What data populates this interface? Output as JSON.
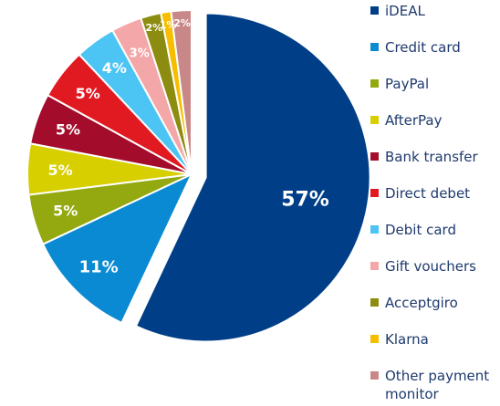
{
  "chart_data": {
    "type": "pie",
    "title": "",
    "legend_position": "right",
    "exploded_slice": "iDEAL",
    "slices": [
      {
        "name": "iDEAL",
        "value": 57,
        "label": "57%",
        "color": "#003f87"
      },
      {
        "name": "Credit card",
        "value": 11,
        "label": "11%",
        "color": "#0a8ad2"
      },
      {
        "name": "PayPal",
        "value": 5,
        "label": "5%",
        "color": "#93a90f"
      },
      {
        "name": "AfterPay",
        "value": 5,
        "label": "5%",
        "color": "#d7cf00"
      },
      {
        "name": "Bank transfer",
        "value": 5,
        "label": "5%",
        "color": "#a30d2b"
      },
      {
        "name": "Direct debet",
        "value": 5,
        "label": "5%",
        "color": "#e11a22"
      },
      {
        "name": "Debit card",
        "value": 4,
        "label": "4%",
        "color": "#4cc4f4"
      },
      {
        "name": "Gift vouchers",
        "value": 3,
        "label": "3%",
        "color": "#f4a7a8"
      },
      {
        "name": "Acceptgiro",
        "value": 2,
        "label": "2%",
        "color": "#8c8c10"
      },
      {
        "name": "Klarna",
        "value": 1,
        "label": "1%",
        "color": "#f7be00"
      },
      {
        "name": "Other payment monitor",
        "value": 2,
        "label": "2%",
        "color": "#c98888"
      }
    ],
    "legend": [
      {
        "line1": "iDEAL",
        "line2": ""
      },
      {
        "line1": "Credit card",
        "line2": ""
      },
      {
        "line1": "PayPal",
        "line2": ""
      },
      {
        "line1": "AfterPay",
        "line2": ""
      },
      {
        "line1": "Bank transfer",
        "line2": ""
      },
      {
        "line1": "Direct debet",
        "line2": ""
      },
      {
        "line1": "Debit card",
        "line2": ""
      },
      {
        "line1": "Gift vouchers",
        "line2": ""
      },
      {
        "line1": "Acceptgiro",
        "line2": ""
      },
      {
        "line1": "Klarna",
        "line2": ""
      },
      {
        "line1": "Other payment",
        "line2": "monitor"
      }
    ]
  }
}
